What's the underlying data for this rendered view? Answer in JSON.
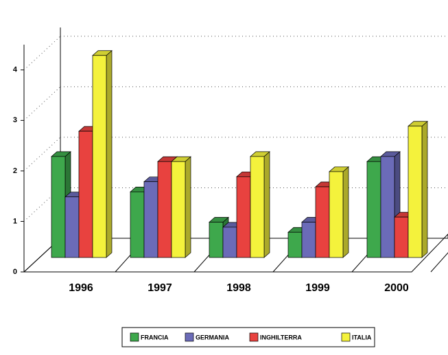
{
  "chart_data": {
    "type": "bar3d",
    "categories": [
      "1996",
      "1997",
      "1998",
      "1999",
      "2000"
    ],
    "series": [
      {
        "name": "FRANCIA",
        "color": "#3ea84c",
        "values": [
          2.0,
          1.3,
          0.7,
          0.5,
          1.9
        ]
      },
      {
        "name": "GERMANIA",
        "color": "#6b6bb8",
        "values": [
          1.2,
          1.5,
          0.6,
          0.7,
          2.0
        ]
      },
      {
        "name": "INGHILTERRA",
        "color": "#e8423f",
        "values": [
          2.5,
          1.9,
          1.6,
          1.4,
          0.8
        ]
      },
      {
        "name": "ITALIA",
        "color": "#f4f23c",
        "values": [
          4.0,
          1.9,
          2.0,
          1.7,
          2.6
        ]
      }
    ],
    "ylim": [
      0,
      4.5
    ],
    "yticks": [
      0,
      1,
      2,
      3,
      4
    ],
    "grid": true,
    "legend": "bottom"
  }
}
